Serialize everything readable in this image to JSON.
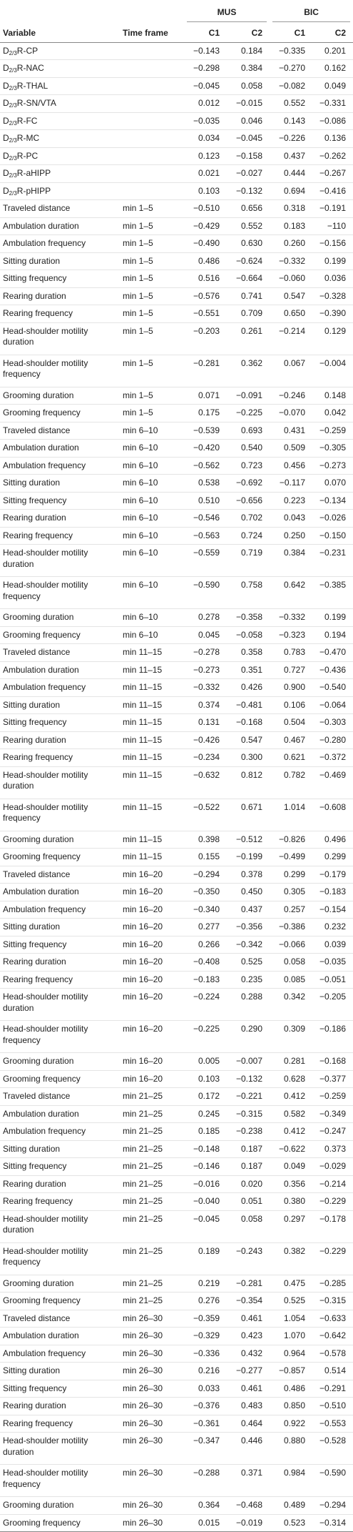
{
  "table": {
    "groups": [
      "MUS",
      "BIC"
    ],
    "columns": [
      "Variable",
      "Time frame",
      "C1",
      "C2",
      "C1",
      "C2"
    ],
    "rows": [
      [
        "D2/3R-CP",
        null,
        "−0.143",
        "0.184",
        "−0.335",
        "0.201"
      ],
      [
        "D2/3R-NAC",
        null,
        "−0.298",
        "0.384",
        "−0.270",
        "0.162"
      ],
      [
        "D2/3R-THAL",
        null,
        "−0.045",
        "0.058",
        "−0.082",
        "0.049"
      ],
      [
        "D2/3R-SN/VTA",
        null,
        "0.012",
        "−0.015",
        "0.552",
        "−0.331"
      ],
      [
        "D2/3R-FC",
        null,
        "−0.035",
        "0.046",
        "0.143",
        "−0.086"
      ],
      [
        "D2/3R-MC",
        null,
        "0.034",
        "−0.045",
        "−0.226",
        "0.136"
      ],
      [
        "D2/3R-PC",
        null,
        "0.123",
        "−0.158",
        "0.437",
        "−0.262"
      ],
      [
        "D2/3R-aHIPP",
        null,
        "0.021",
        "−0.027",
        "0.444",
        "−0.267"
      ],
      [
        "D2/3R-pHIPP",
        null,
        "0.103",
        "−0.132",
        "0.694",
        "−0.416"
      ],
      [
        "Traveled distance",
        "min 1–5",
        "−0.510",
        "0.656",
        "0.318",
        "−0.191"
      ],
      [
        "Ambulation duration",
        "min 1–5",
        "−0.429",
        "0.552",
        "0.183",
        "−110"
      ],
      [
        "Ambulation frequency",
        "min 1–5",
        "−0.490",
        "0.630",
        "0.260",
        "−0.156"
      ],
      [
        "Sitting duration",
        "min 1–5",
        "0.486",
        "−0.624",
        "−0.332",
        "0.199"
      ],
      [
        "Sitting frequency",
        "min 1–5",
        "0.516",
        "−0.664",
        "−0.060",
        "0.036"
      ],
      [
        "Rearing duration",
        "min 1–5",
        "−0.576",
        "0.741",
        "0.547",
        "−0.328"
      ],
      [
        "Rearing frequency",
        "min 1–5",
        "−0.551",
        "0.709",
        "0.650",
        "−0.390"
      ],
      [
        "Head-shoulder motility duration",
        "min 1–5",
        "−0.203",
        "0.261",
        "−0.214",
        "0.129"
      ],
      [
        "Head-shoulder motility frequency",
        "min 1–5",
        "−0.281",
        "0.362",
        "0.067",
        "−0.004"
      ],
      [
        "Grooming duration",
        "min 1–5",
        "0.071",
        "−0.091",
        "−0.246",
        "0.148"
      ],
      [
        "Grooming frequency",
        "min 1–5",
        "0.175",
        "−0.225",
        "−0.070",
        "0.042"
      ],
      [
        "Traveled distance",
        "min 6–10",
        "−0.539",
        "0.693",
        "0.431",
        "−0.259"
      ],
      [
        "Ambulation duration",
        "min 6–10",
        "−0.420",
        "0.540",
        "0.509",
        "−0.305"
      ],
      [
        "Ambulation frequency",
        "min 6–10",
        "−0.562",
        "0.723",
        "0.456",
        "−0.273"
      ],
      [
        "Sitting duration",
        "min 6–10",
        "0.538",
        "−0.692",
        "−0.117",
        "0.070"
      ],
      [
        "Sitting frequency",
        "min 6–10",
        "0.510",
        "−0.656",
        "0.223",
        "−0.134"
      ],
      [
        "Rearing duration",
        "min 6–10",
        "−0.546",
        "0.702",
        "0.043",
        "−0.026"
      ],
      [
        "Rearing frequency",
        "min 6–10",
        "−0.563",
        "0.724",
        "0.250",
        "−0.150"
      ],
      [
        "Head-shoulder motility duration",
        "min 6–10",
        "−0.559",
        "0.719",
        "0.384",
        "−0.231"
      ],
      [
        "Head-shoulder motility frequency",
        "min 6–10",
        "−0.590",
        "0.758",
        "0.642",
        "−0.385"
      ],
      [
        "Grooming duration",
        "min 6–10",
        "0.278",
        "−0.358",
        "−0.332",
        "0.199"
      ],
      [
        "Grooming frequency",
        "min 6–10",
        "0.045",
        "−0.058",
        "−0.323",
        "0.194"
      ],
      [
        "Traveled distance",
        "min 11–15",
        "−0.278",
        "0.358",
        "0.783",
        "−0.470"
      ],
      [
        "Ambulation duration",
        "min 11–15",
        "−0.273",
        "0.351",
        "0.727",
        "−0.436"
      ],
      [
        "Ambulation frequency",
        "min 11–15",
        "−0.332",
        "0.426",
        "0.900",
        "−0.540"
      ],
      [
        "Sitting duration",
        "min 11–15",
        "0.374",
        "−0.481",
        "0.106",
        "−0.064"
      ],
      [
        "Sitting frequency",
        "min 11–15",
        "0.131",
        "−0.168",
        "0.504",
        "−0.303"
      ],
      [
        "Rearing duration",
        "min 11–15",
        "−0.426",
        "0.547",
        "0.467",
        "−0.280"
      ],
      [
        "Rearing frequency",
        "min 11–15",
        "−0.234",
        "0.300",
        "0.621",
        "−0.372"
      ],
      [
        "Head-shoulder motility duration",
        "min 11–15",
        "−0.632",
        "0.812",
        "0.782",
        "−0.469"
      ],
      [
        "Head-shoulder motility frequency",
        "min 11–15",
        "−0.522",
        "0.671",
        "1.014",
        "−0.608"
      ],
      [
        "Grooming duration",
        "min 11–15",
        "0.398",
        "−0.512",
        "−0.826",
        "0.496"
      ],
      [
        "Grooming frequency",
        "min 11–15",
        "0.155",
        "−0.199",
        "−0.499",
        "0.299"
      ],
      [
        "Traveled distance",
        "min 16–20",
        "−0.294",
        "0.378",
        "0.299",
        "−0.179"
      ],
      [
        "Ambulation duration",
        "min 16–20",
        "−0.350",
        "0.450",
        "0.305",
        "−0.183"
      ],
      [
        "Ambulation frequency",
        "min 16–20",
        "−0.340",
        "0.437",
        "0.257",
        "−0.154"
      ],
      [
        "Sitting duration",
        "min 16–20",
        "0.277",
        "−0.356",
        "−0.386",
        "0.232"
      ],
      [
        "Sitting frequency",
        "min 16–20",
        "0.266",
        "−0.342",
        "−0.066",
        "0.039"
      ],
      [
        "Rearing duration",
        "min 16–20",
        "−0.408",
        "0.525",
        "0.058",
        "−0.035"
      ],
      [
        "Rearing frequency",
        "min 16–20",
        "−0.183",
        "0.235",
        "0.085",
        "−0.051"
      ],
      [
        "Head-shoulder motility duration",
        "min 16–20",
        "−0.224",
        "0.288",
        "0.342",
        "−0.205"
      ],
      [
        "Head-shoulder motility frequency",
        "min 16–20",
        "−0.225",
        "0.290",
        "0.309",
        "−0.186"
      ],
      [
        "Grooming duration",
        "min 16–20",
        "0.005",
        "−0.007",
        "0.281",
        "−0.168"
      ],
      [
        "Grooming frequency",
        "min 16–20",
        "0.103",
        "−0.132",
        "0.628",
        "−0.377"
      ],
      [
        "Traveled distance",
        "min 21–25",
        "0.172",
        "−0.221",
        "0.412",
        "−0.259"
      ],
      [
        "Ambulation duration",
        "min 21–25",
        "0.245",
        "−0.315",
        "0.582",
        "−0.349"
      ],
      [
        "Ambulation frequency",
        "min 21–25",
        "0.185",
        "−0.238",
        "0.412",
        "−0.247"
      ],
      [
        "Sitting duration",
        "min 21–25",
        "−0.148",
        "0.187",
        "−0.622",
        "0.373"
      ],
      [
        "Sitting frequency",
        "min 21–25",
        "−0.146",
        "0.187",
        "0.049",
        "−0.029"
      ],
      [
        "Rearing duration",
        "min 21–25",
        "−0.016",
        "0.020",
        "0.356",
        "−0.214"
      ],
      [
        "Rearing frequency",
        "min 21–25",
        "−0.040",
        "0.051",
        "0.380",
        "−0.229"
      ],
      [
        "Head-shoulder motility duration",
        "min 21–25",
        "−0.045",
        "0.058",
        "0.297",
        "−0.178"
      ],
      [
        "Head-shoulder motility frequency",
        "min 21–25",
        "0.189",
        "−0.243",
        "0.382",
        "−0.229"
      ],
      [
        "Grooming duration",
        "min 21–25",
        "0.219",
        "−0.281",
        "0.475",
        "−0.285"
      ],
      [
        "Grooming frequency",
        "min 21–25",
        "0.276",
        "−0.354",
        "0.525",
        "−0.315"
      ],
      [
        "Traveled distance",
        "min 26–30",
        "−0.359",
        "0.461",
        "1.054",
        "−0.633"
      ],
      [
        "Ambulation duration",
        "min 26–30",
        "−0.329",
        "0.423",
        "1.070",
        "−0.642"
      ],
      [
        "Ambulation frequency",
        "min 26–30",
        "−0.336",
        "0.432",
        "0.964",
        "−0.578"
      ],
      [
        "Sitting duration",
        "min 26–30",
        "0.216",
        "−0.277",
        "−0.857",
        "0.514"
      ],
      [
        "Sitting frequency",
        "min 26–30",
        "0.033",
        "0.461",
        "0.486",
        "−0.291"
      ],
      [
        "Rearing duration",
        "min 26–30",
        "−0.376",
        "0.483",
        "0.850",
        "−0.510"
      ],
      [
        "Rearing frequency",
        "min 26–30",
        "−0.361",
        "0.464",
        "0.922",
        "−0.553"
      ],
      [
        "Head-shoulder motility duration",
        "min 26–30",
        "−0.347",
        "0.446",
        "0.880",
        "−0.528"
      ],
      [
        "Head-shoulder motility frequency",
        "min 26–30",
        "−0.288",
        "0.371",
        "0.984",
        "−0.590"
      ],
      [
        "Grooming duration",
        "min 26–30",
        "0.364",
        "−0.468",
        "0.489",
        "−0.294"
      ],
      [
        "Grooming frequency",
        "min 26–30",
        "0.015",
        "−0.019",
        "0.523",
        "−0.314"
      ]
    ]
  }
}
